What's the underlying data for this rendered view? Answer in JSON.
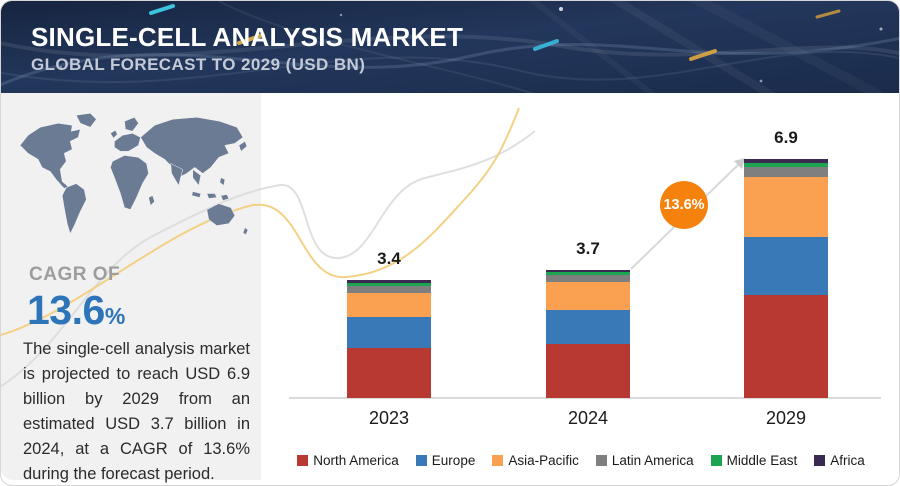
{
  "header": {
    "title": "SINGLE-CELL ANALYSIS MARKET",
    "subtitle": "GLOBAL FORECAST TO 2029 (USD BN)"
  },
  "sidebar": {
    "cagr_label": "CAGR OF",
    "cagr_value": "13.6",
    "cagr_unit": "%",
    "description": "The single-cell analysis market is projected to reach USD 6.9 billion by 2029 from an estimated USD 3.7 billion in 2024, at a CAGR of 13.6% during the forecast period."
  },
  "chart_data": {
    "type": "bar",
    "stacked": true,
    "title": "Single-Cell Analysis Market, Global Forecast (USD BN)",
    "categories": [
      "2023",
      "2024",
      "2029"
    ],
    "totals": [
      3.4,
      3.7,
      6.9
    ],
    "series": [
      {
        "name": "North America",
        "color": "#b73931",
        "values": [
          1.43,
          1.56,
          2.98
        ]
      },
      {
        "name": "Europe",
        "color": "#3a79b8",
        "values": [
          0.9,
          0.98,
          1.68
        ]
      },
      {
        "name": "Asia-Pacific",
        "color": "#f9a051",
        "values": [
          0.71,
          0.8,
          1.72
        ]
      },
      {
        "name": "Latin America",
        "color": "#7f7f7f",
        "values": [
          0.2,
          0.21,
          0.29
        ]
      },
      {
        "name": "Middle East",
        "color": "#1ba551",
        "values": [
          0.09,
          0.09,
          0.13
        ]
      },
      {
        "name": "Africa",
        "color": "#3a2a52",
        "values": [
          0.07,
          0.06,
          0.1
        ]
      }
    ],
    "legend_position": "bottom",
    "grid": false,
    "annotation": {
      "label": "13.6%",
      "color": "#f5820c"
    },
    "accent_colors": {
      "cagr_blue": "#2e74b8",
      "badge_orange": "#f5820c",
      "header_navy": "#203456"
    }
  }
}
